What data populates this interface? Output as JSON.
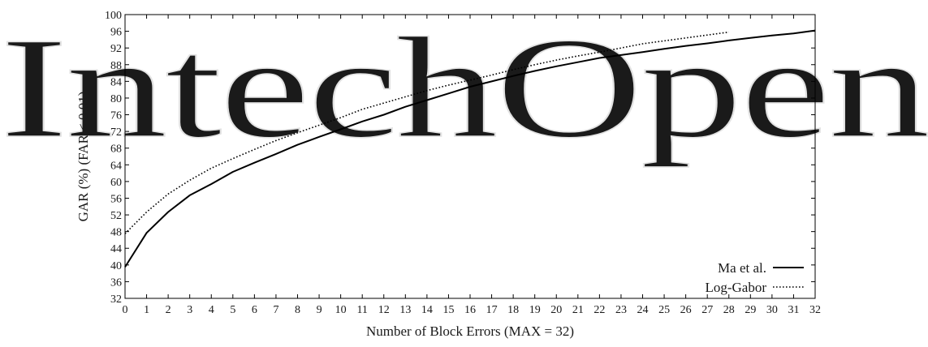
{
  "watermark": {
    "text": "IntechOpen"
  },
  "chart_data": {
    "type": "line",
    "title": "",
    "xlabel": "Number of Block Errors (MAX = 32)",
    "ylabel": "GAR (%) (FAR < 0.01)",
    "xlim": [
      0,
      32
    ],
    "ylim": [
      32,
      100
    ],
    "x_ticks": [
      0,
      1,
      2,
      3,
      4,
      5,
      6,
      7,
      8,
      9,
      10,
      11,
      12,
      13,
      14,
      15,
      16,
      17,
      18,
      19,
      20,
      21,
      22,
      23,
      24,
      25,
      26,
      27,
      28,
      29,
      30,
      31,
      32
    ],
    "y_ticks": [
      32,
      36,
      40,
      44,
      48,
      52,
      56,
      60,
      64,
      68,
      72,
      76,
      80,
      84,
      88,
      92,
      96,
      100
    ],
    "grid": false,
    "legend_position": "bottom-right",
    "series": [
      {
        "name": "Ma et al.",
        "style": "solid",
        "color": "#000000",
        "x": [
          0,
          1,
          2,
          3,
          4,
          5,
          6,
          7,
          8,
          9,
          10,
          11,
          12,
          13,
          14,
          15,
          16,
          17,
          18,
          19,
          20,
          21,
          22,
          23,
          24,
          25,
          26,
          27,
          28,
          29,
          30,
          31,
          32
        ],
        "y": [
          39.5,
          47.7,
          52.7,
          56.7,
          59.4,
          62.3,
          64.5,
          66.6,
          68.8,
          70.7,
          72.5,
          74.4,
          76.0,
          77.9,
          79.5,
          81.1,
          82.7,
          84.0,
          85.3,
          86.5,
          87.6,
          88.6,
          89.6,
          90.3,
          91.0,
          91.8,
          92.5,
          93.1,
          93.8,
          94.4,
          95.0,
          95.5,
          96.2
        ]
      },
      {
        "name": "Log-Gabor",
        "style": "dotted",
        "color": "#000000",
        "x": [
          0,
          1,
          2,
          3,
          4,
          5,
          6,
          7,
          8,
          9,
          10,
          11,
          12,
          13,
          14,
          15,
          16,
          17,
          18,
          19,
          20,
          21,
          22,
          23,
          24,
          25,
          26,
          27,
          28
        ],
        "y": [
          47.5,
          52.7,
          57.0,
          60.3,
          63.2,
          65.5,
          67.7,
          69.8,
          71.7,
          73.5,
          75.3,
          77.3,
          78.8,
          80.3,
          81.8,
          83.1,
          84.3,
          85.5,
          86.8,
          88.0,
          89.1,
          90.1,
          91.0,
          92.0,
          93.0,
          93.7,
          94.4,
          95.1,
          95.8
        ]
      }
    ]
  }
}
